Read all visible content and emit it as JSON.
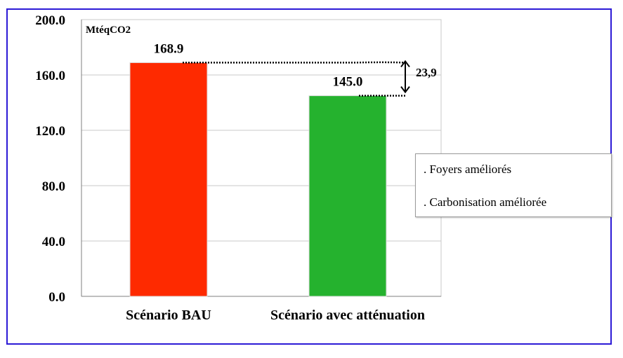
{
  "chart_data": {
    "type": "bar",
    "categories": [
      "Scénario BAU",
      "Scénario avec atténuation"
    ],
    "values": [
      168.9,
      145.0
    ],
    "value_labels": [
      "168.9",
      "145.0"
    ],
    "bar_colors": [
      "#fe2a00",
      "#25b22e"
    ],
    "ylabel": "MtéqCO2",
    "ylim": [
      0,
      200
    ],
    "yticks": [
      0,
      40,
      80,
      120,
      160,
      200
    ],
    "ytick_labels": [
      "0.0",
      "40.0",
      "80.0",
      "120.0",
      "160.0",
      "200.0"
    ],
    "grid": true,
    "difference_label": "23,9",
    "legend": {
      "placement": "right",
      "entries": [
        ". Foyers améliorés",
        ". Carbonisation améliorée"
      ]
    }
  },
  "colors": {
    "frame_border": "#2c1ad6",
    "grid": "#c8c8c8",
    "axis": "#7f7f7f",
    "bau_bar": "#fe2a00",
    "attenuation_bar": "#25b22e"
  }
}
